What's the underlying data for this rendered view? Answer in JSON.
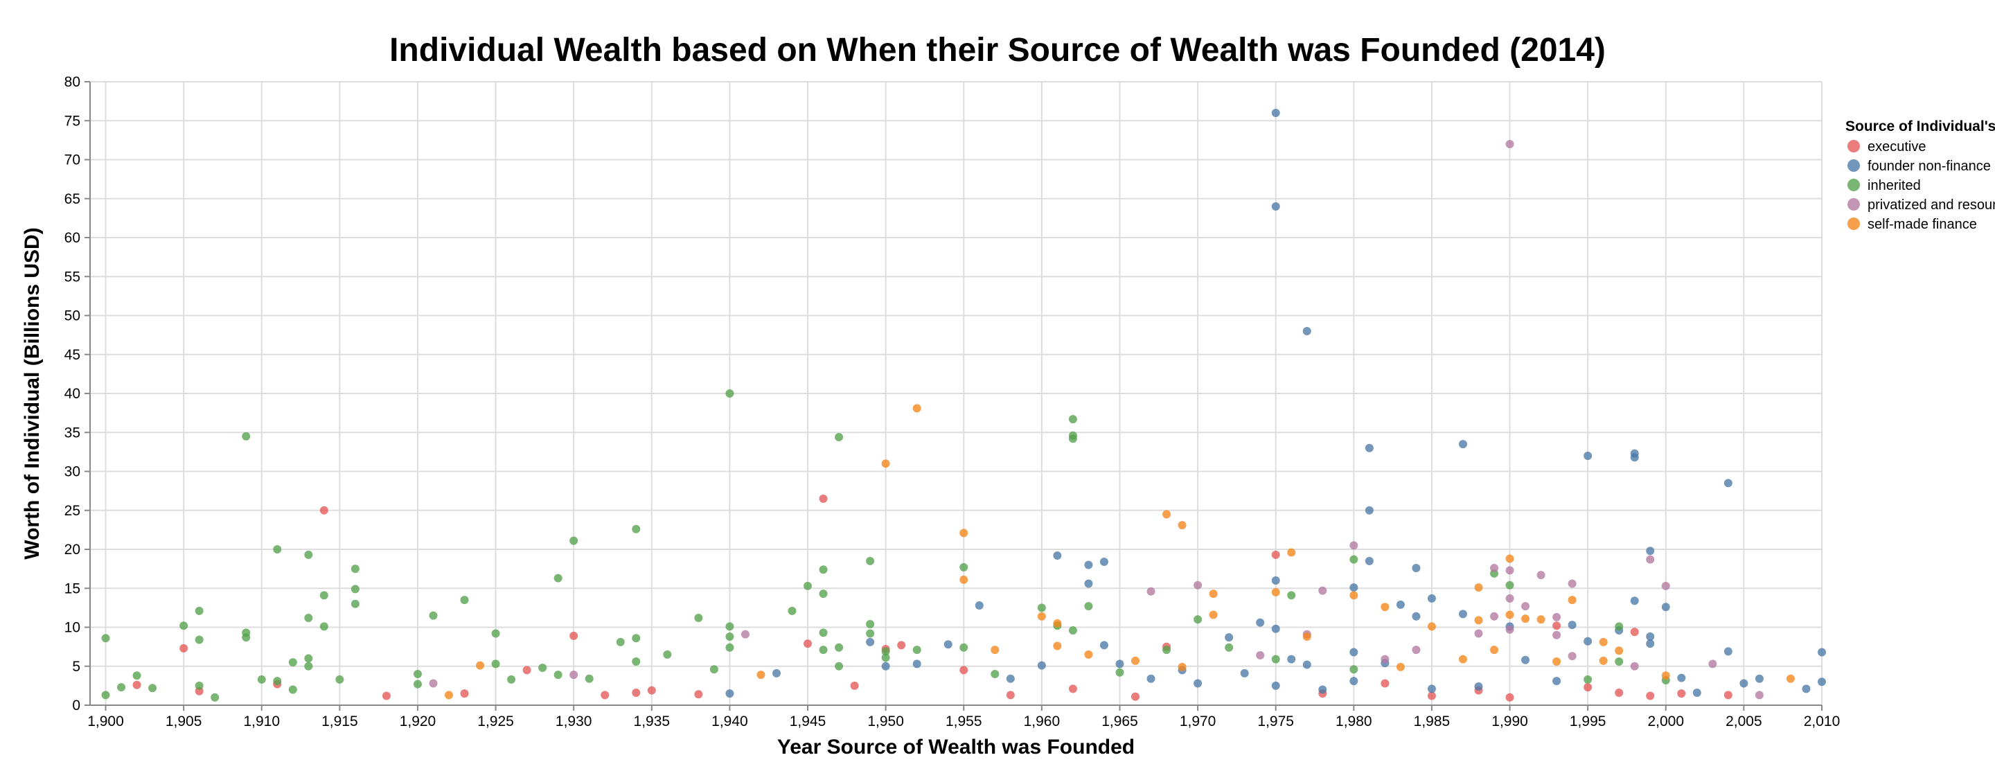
{
  "chart_data": {
    "type": "scatter",
    "title": "Individual Wealth based on When their Source of Wealth was Founded (2014)",
    "xlabel": "Year Source of Wealth was Founded",
    "ylabel": "Worth of Individual (Billions USD)",
    "xlim": [
      1899,
      2010
    ],
    "ylim": [
      0,
      80
    ],
    "x_ticks": [
      1900,
      1905,
      1910,
      1915,
      1920,
      1925,
      1930,
      1935,
      1940,
      1945,
      1950,
      1955,
      1960,
      1965,
      1970,
      1975,
      1980,
      1985,
      1990,
      1995,
      2000,
      2005,
      2010
    ],
    "x_tick_labels": [
      "1,900",
      "1,905",
      "1,910",
      "1,915",
      "1,920",
      "1,925",
      "1,930",
      "1,935",
      "1,940",
      "1,945",
      "1,950",
      "1,955",
      "1,960",
      "1,965",
      "1,970",
      "1,975",
      "1,980",
      "1,985",
      "1,990",
      "1,995",
      "2,000",
      "2,005",
      "2,010"
    ],
    "y_ticks": [
      0,
      5,
      10,
      15,
      20,
      25,
      30,
      35,
      40,
      45,
      50,
      55,
      60,
      65,
      70,
      75,
      80
    ],
    "grid": true,
    "legend": {
      "title": "Source of Individual's Wealth",
      "placement": "right-top",
      "entries": [
        "executive",
        "founder non-finance",
        "inherited",
        "privatized and resources",
        "self-made finance"
      ]
    },
    "series": [
      {
        "name": "executive",
        "color": "#e45756",
        "points": [
          [
            1902,
            2.6
          ],
          [
            1905,
            7.3
          ],
          [
            1906,
            1.8
          ],
          [
            1911,
            2.7
          ],
          [
            1914,
            25.0
          ],
          [
            1918,
            1.2
          ],
          [
            1923,
            1.5
          ],
          [
            1927,
            4.5
          ],
          [
            1930,
            8.9
          ],
          [
            1932,
            1.3
          ],
          [
            1934,
            1.6
          ],
          [
            1935,
            1.9
          ],
          [
            1938,
            1.4
          ],
          [
            1945,
            7.9
          ],
          [
            1946,
            26.5
          ],
          [
            1948,
            2.5
          ],
          [
            1950,
            7.2
          ],
          [
            1951,
            7.7
          ],
          [
            1955,
            4.5
          ],
          [
            1958,
            1.3
          ],
          [
            1962,
            2.1
          ],
          [
            1966,
            1.1
          ],
          [
            1968,
            7.5
          ],
          [
            1975,
            19.3
          ],
          [
            1978,
            1.5
          ],
          [
            1982,
            2.8
          ],
          [
            1985,
            1.2
          ],
          [
            1988,
            1.9
          ],
          [
            1990,
            1.0
          ],
          [
            1993,
            10.2
          ],
          [
            1995,
            2.3
          ],
          [
            1997,
            1.6
          ],
          [
            1998,
            9.4
          ],
          [
            1999,
            1.2
          ],
          [
            2001,
            1.5
          ],
          [
            2004,
            1.3
          ]
        ]
      },
      {
        "name": "founder non-finance",
        "color": "#4c78a8",
        "points": [
          [
            1940,
            1.5
          ],
          [
            1943,
            4.1
          ],
          [
            1949,
            8.1
          ],
          [
            1950,
            5.0
          ],
          [
            1952,
            5.3
          ],
          [
            1954,
            7.8
          ],
          [
            1956,
            12.8
          ],
          [
            1958,
            3.4
          ],
          [
            1960,
            5.1
          ],
          [
            1961,
            19.2
          ],
          [
            1963,
            18.0
          ],
          [
            1963,
            15.6
          ],
          [
            1964,
            18.4
          ],
          [
            1964,
            7.7
          ],
          [
            1965,
            5.3
          ],
          [
            1967,
            3.4
          ],
          [
            1969,
            4.5
          ],
          [
            1970,
            2.8
          ],
          [
            1972,
            8.7
          ],
          [
            1973,
            4.1
          ],
          [
            1974,
            10.6
          ],
          [
            1975,
            76.0
          ],
          [
            1975,
            64.0
          ],
          [
            1975,
            16.0
          ],
          [
            1975,
            9.8
          ],
          [
            1975,
            2.5
          ],
          [
            1976,
            5.9
          ],
          [
            1977,
            48.0
          ],
          [
            1977,
            5.2
          ],
          [
            1978,
            2.0
          ],
          [
            1980,
            15.1
          ],
          [
            1980,
            6.8
          ],
          [
            1980,
            3.1
          ],
          [
            1981,
            33.0
          ],
          [
            1981,
            25.0
          ],
          [
            1981,
            18.5
          ],
          [
            1982,
            5.4
          ],
          [
            1983,
            12.9
          ],
          [
            1984,
            17.6
          ],
          [
            1984,
            11.4
          ],
          [
            1985,
            13.7
          ],
          [
            1985,
            2.1
          ],
          [
            1987,
            33.5
          ],
          [
            1987,
            11.7
          ],
          [
            1988,
            2.4
          ],
          [
            1990,
            10.1
          ],
          [
            1991,
            5.8
          ],
          [
            1993,
            3.1
          ],
          [
            1994,
            10.3
          ],
          [
            1995,
            32.0
          ],
          [
            1995,
            8.2
          ],
          [
            1997,
            9.6
          ],
          [
            1998,
            32.3
          ],
          [
            1998,
            31.8
          ],
          [
            1998,
            13.4
          ],
          [
            1999,
            19.8
          ],
          [
            1999,
            8.8
          ],
          [
            1999,
            7.9
          ],
          [
            2000,
            12.6
          ],
          [
            2001,
            3.5
          ],
          [
            2002,
            1.6
          ],
          [
            2004,
            28.5
          ],
          [
            2004,
            6.9
          ],
          [
            2005,
            2.8
          ],
          [
            2006,
            3.4
          ],
          [
            2009,
            2.1
          ],
          [
            2010,
            6.8
          ],
          [
            2010,
            3.0
          ]
        ]
      },
      {
        "name": "inherited",
        "color": "#54a24b",
        "points": [
          [
            1900,
            8.6
          ],
          [
            1900,
            1.3
          ],
          [
            1901,
            2.3
          ],
          [
            1902,
            3.8
          ],
          [
            1903,
            2.2
          ],
          [
            1905,
            10.2
          ],
          [
            1906,
            12.1
          ],
          [
            1906,
            8.4
          ],
          [
            1906,
            2.5
          ],
          [
            1907,
            1.0
          ],
          [
            1909,
            34.5
          ],
          [
            1909,
            9.3
          ],
          [
            1909,
            8.7
          ],
          [
            1910,
            3.3
          ],
          [
            1911,
            20.0
          ],
          [
            1911,
            3.1
          ],
          [
            1912,
            5.5
          ],
          [
            1912,
            2.0
          ],
          [
            1913,
            19.3
          ],
          [
            1913,
            11.2
          ],
          [
            1913,
            6.0
          ],
          [
            1913,
            5.0
          ],
          [
            1914,
            14.1
          ],
          [
            1914,
            10.1
          ],
          [
            1915,
            3.3
          ],
          [
            1916,
            17.5
          ],
          [
            1916,
            14.9
          ],
          [
            1916,
            13.0
          ],
          [
            1920,
            4.0
          ],
          [
            1920,
            2.7
          ],
          [
            1921,
            11.5
          ],
          [
            1923,
            13.5
          ],
          [
            1925,
            9.2
          ],
          [
            1925,
            5.3
          ],
          [
            1926,
            3.3
          ],
          [
            1928,
            4.8
          ],
          [
            1929,
            16.3
          ],
          [
            1929,
            3.9
          ],
          [
            1930,
            21.1
          ],
          [
            1931,
            3.4
          ],
          [
            1933,
            8.1
          ],
          [
            1934,
            22.6
          ],
          [
            1934,
            8.6
          ],
          [
            1934,
            5.6
          ],
          [
            1936,
            6.5
          ],
          [
            1938,
            11.2
          ],
          [
            1939,
            4.6
          ],
          [
            1940,
            40.0
          ],
          [
            1940,
            10.1
          ],
          [
            1940,
            8.8
          ],
          [
            1940,
            7.4
          ],
          [
            1944,
            12.1
          ],
          [
            1945,
            15.3
          ],
          [
            1946,
            17.4
          ],
          [
            1946,
            14.3
          ],
          [
            1946,
            9.3
          ],
          [
            1946,
            7.1
          ],
          [
            1947,
            34.4
          ],
          [
            1947,
            7.4
          ],
          [
            1947,
            5.0
          ],
          [
            1949,
            18.5
          ],
          [
            1949,
            10.4
          ],
          [
            1949,
            9.2
          ],
          [
            1950,
            6.9
          ],
          [
            1950,
            6.1
          ],
          [
            1952,
            7.1
          ],
          [
            1955,
            17.7
          ],
          [
            1955,
            7.4
          ],
          [
            1957,
            4.0
          ],
          [
            1960,
            12.5
          ],
          [
            1961,
            10.2
          ],
          [
            1962,
            36.7
          ],
          [
            1962,
            34.6
          ],
          [
            1962,
            34.2
          ],
          [
            1962,
            9.6
          ],
          [
            1963,
            12.7
          ],
          [
            1965,
            4.2
          ],
          [
            1968,
            7.1
          ],
          [
            1970,
            11.0
          ],
          [
            1972,
            7.4
          ],
          [
            1975,
            5.9
          ],
          [
            1976,
            14.1
          ],
          [
            1980,
            18.7
          ],
          [
            1980,
            4.6
          ],
          [
            1989,
            16.9
          ],
          [
            1990,
            15.4
          ],
          [
            1995,
            3.3
          ],
          [
            1997,
            10.1
          ],
          [
            1997,
            5.6
          ],
          [
            2000,
            3.2
          ]
        ]
      },
      {
        "name": "privatized and resources",
        "color": "#b279a2",
        "points": [
          [
            1921,
            2.8
          ],
          [
            1930,
            3.9
          ],
          [
            1941,
            9.1
          ],
          [
            1967,
            14.6
          ],
          [
            1970,
            15.4
          ],
          [
            1974,
            6.4
          ],
          [
            1977,
            9.1
          ],
          [
            1978,
            14.7
          ],
          [
            1980,
            20.5
          ],
          [
            1982,
            5.9
          ],
          [
            1984,
            7.1
          ],
          [
            1988,
            9.2
          ],
          [
            1989,
            17.6
          ],
          [
            1989,
            11.4
          ],
          [
            1990,
            72.0
          ],
          [
            1990,
            17.3
          ],
          [
            1990,
            13.7
          ],
          [
            1990,
            9.7
          ],
          [
            1991,
            12.7
          ],
          [
            1992,
            16.7
          ],
          [
            1993,
            11.3
          ],
          [
            1993,
            9.0
          ],
          [
            1994,
            15.6
          ],
          [
            1994,
            6.3
          ],
          [
            1998,
            5.0
          ],
          [
            1999,
            18.7
          ],
          [
            2000,
            15.3
          ],
          [
            2003,
            5.3
          ],
          [
            2006,
            1.3
          ]
        ]
      },
      {
        "name": "self-made finance",
        "color": "#f58518",
        "points": [
          [
            1922,
            1.3
          ],
          [
            1924,
            5.1
          ],
          [
            1942,
            3.9
          ],
          [
            1950,
            31.0
          ],
          [
            1952,
            38.1
          ],
          [
            1955,
            22.1
          ],
          [
            1955,
            16.1
          ],
          [
            1957,
            7.1
          ],
          [
            1960,
            11.4
          ],
          [
            1961,
            10.5
          ],
          [
            1961,
            7.6
          ],
          [
            1963,
            6.5
          ],
          [
            1966,
            5.7
          ],
          [
            1968,
            24.5
          ],
          [
            1969,
            23.1
          ],
          [
            1969,
            4.9
          ],
          [
            1971,
            14.3
          ],
          [
            1971,
            11.6
          ],
          [
            1975,
            14.5
          ],
          [
            1976,
            19.6
          ],
          [
            1977,
            8.8
          ],
          [
            1980,
            14.1
          ],
          [
            1982,
            12.6
          ],
          [
            1983,
            4.9
          ],
          [
            1985,
            10.1
          ],
          [
            1987,
            5.9
          ],
          [
            1988,
            15.1
          ],
          [
            1988,
            10.9
          ],
          [
            1989,
            7.1
          ],
          [
            1990,
            18.8
          ],
          [
            1990,
            11.6
          ],
          [
            1991,
            11.1
          ],
          [
            1992,
            11.0
          ],
          [
            1993,
            5.6
          ],
          [
            1994,
            13.5
          ],
          [
            1996,
            8.1
          ],
          [
            1996,
            5.7
          ],
          [
            1997,
            7.0
          ],
          [
            2000,
            3.8
          ],
          [
            2008,
            3.4
          ]
        ]
      }
    ]
  }
}
